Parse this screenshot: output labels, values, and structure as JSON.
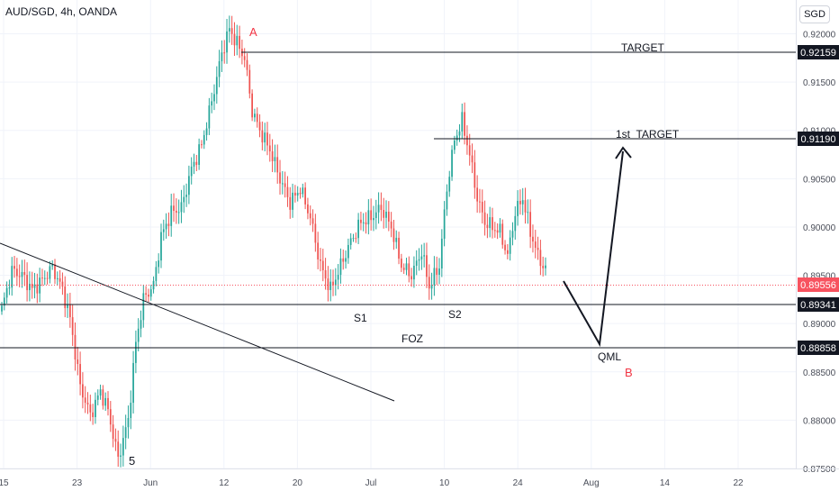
{
  "header": {
    "symbol": "AUD/SGD, 4h, OANDA"
  },
  "currency": "SGD",
  "chart_data": {
    "type": "candlestick",
    "title": "AUD/SGD, 4h, OANDA",
    "ylim": [
      0.875,
      0.9235
    ],
    "y_ticks": [
      "0.92000",
      "0.91500",
      "0.91000",
      "0.90500",
      "0.90000",
      "0.89500",
      "0.89000",
      "0.88500",
      "0.88000",
      "0.87500"
    ],
    "x_ticks": [
      "15",
      "23",
      "Jun",
      "12",
      "20",
      "Jul",
      "10",
      "24",
      "Aug",
      "14",
      "22"
    ],
    "grid": true,
    "colors": {
      "up": "#26a69a",
      "down": "#ef5350",
      "line": "#131722",
      "label_red": "#f23645",
      "current_price": "#f7525f",
      "grid": "#f0f3fa"
    },
    "price_labels": [
      {
        "value": "0.92159",
        "style": "dark"
      },
      {
        "value": "0.91190",
        "style": "dark"
      },
      {
        "value": "0.89556",
        "style": "red"
      },
      {
        "value": "0.89341",
        "style": "dark"
      },
      {
        "value": "0.88858",
        "style": "dark"
      }
    ],
    "levels": [
      0.92159,
      0.9119,
      0.89341,
      0.88858
    ],
    "current_price": 0.89556,
    "annotations": [
      {
        "text": "TARGET",
        "color": "dark"
      },
      {
        "text": "1st  TARGET",
        "color": "dark"
      },
      {
        "text": "FOZ",
        "color": "dark"
      },
      {
        "text": "QML",
        "color": "dark"
      },
      {
        "text": "S1",
        "color": "dark"
      },
      {
        "text": "S2",
        "color": "dark"
      },
      {
        "text": "5",
        "color": "dark"
      },
      {
        "text": "A",
        "color": "red"
      },
      {
        "text": "B",
        "color": "red"
      }
    ],
    "waypoints": [
      [
        0,
        0.8915
      ],
      [
        4,
        0.8955
      ],
      [
        8,
        0.895
      ],
      [
        12,
        0.8935
      ],
      [
        16,
        0.8945
      ],
      [
        20,
        0.8958
      ],
      [
        24,
        0.8935
      ],
      [
        27,
        0.8905
      ],
      [
        31,
        0.8835
      ],
      [
        35,
        0.8805
      ],
      [
        39,
        0.883
      ],
      [
        42,
        0.881
      ],
      [
        46,
        0.876
      ],
      [
        50,
        0.88
      ],
      [
        53,
        0.888
      ],
      [
        56,
        0.8925
      ],
      [
        60,
        0.894
      ],
      [
        63,
        0.899
      ],
      [
        67,
        0.9015
      ],
      [
        71,
        0.902
      ],
      [
        75,
        0.906
      ],
      [
        79,
        0.9085
      ],
      [
        83,
        0.913
      ],
      [
        87,
        0.918
      ],
      [
        90,
        0.9205
      ],
      [
        93,
        0.919
      ],
      [
        96,
        0.9175
      ],
      [
        99,
        0.912
      ],
      [
        102,
        0.91
      ],
      [
        106,
        0.908
      ],
      [
        110,
        0.905
      ],
      [
        114,
        0.9025
      ],
      [
        118,
        0.904
      ],
      [
        122,
        0.901
      ],
      [
        126,
        0.896
      ],
      [
        130,
        0.8935
      ],
      [
        134,
        0.896
      ],
      [
        138,
        0.8985
      ],
      [
        142,
        0.9005
      ],
      [
        146,
        0.901
      ],
      [
        150,
        0.902
      ],
      [
        154,
        0.9
      ],
      [
        158,
        0.896
      ],
      [
        162,
        0.895
      ],
      [
        166,
        0.8975
      ],
      [
        169,
        0.8938
      ],
      [
        173,
        0.896
      ],
      [
        176,
        0.904
      ],
      [
        179,
        0.909
      ],
      [
        182,
        0.911
      ],
      [
        185,
        0.9075
      ],
      [
        188,
        0.903
      ],
      [
        191,
        0.9005
      ],
      [
        194,
        0.9
      ],
      [
        197,
        0.8995
      ],
      [
        200,
        0.897
      ],
      [
        203,
        0.9015
      ],
      [
        206,
        0.903
      ],
      [
        209,
        0.8995
      ],
      [
        212,
        0.897
      ],
      [
        215,
        0.8955
      ]
    ]
  }
}
